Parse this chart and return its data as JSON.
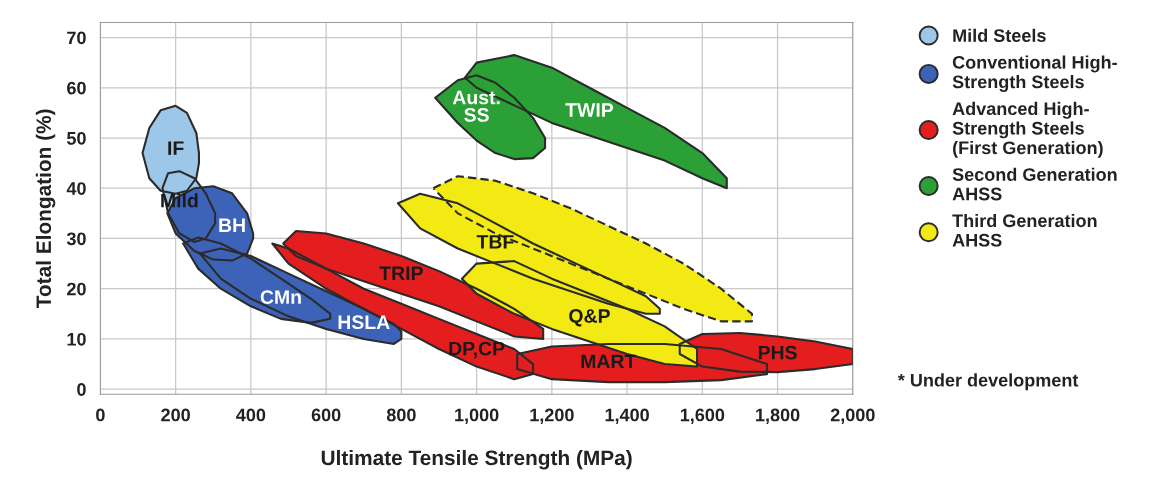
{
  "chart_data": {
    "type": "area",
    "xlabel": "Ultimate Tensile Strength (MPa)",
    "ylabel": "Total Elongation (%)",
    "xlim": [
      0,
      2000
    ],
    "ylim": [
      -1,
      73
    ],
    "xticks": [
      0,
      200,
      400,
      600,
      800,
      {
        "value": 1000,
        "label": "1,000"
      },
      {
        "value": 1200,
        "label": "1,200"
      },
      {
        "value": 1400,
        "label": "1,400"
      },
      {
        "value": 1600,
        "label": "1,600"
      },
      {
        "value": 1800,
        "label": "1,800"
      },
      {
        "value": 2000,
        "label": "2,000"
      }
    ],
    "yticks": [
      0,
      10,
      20,
      30,
      40,
      50,
      60,
      70
    ],
    "grid": true,
    "legend": "right",
    "series": [
      {
        "name": "Mild Steels",
        "color": "#9cc7e8",
        "x": [
          165,
          180,
          210,
          250,
          280,
          305,
          305,
          280,
          250,
          210,
          180,
          165,
          null,
          112,
          130,
          160,
          200,
          230,
          255,
          262,
          262,
          255,
          230,
          200,
          160,
          130,
          112
        ],
        "values": [
          40,
          43,
          43.4,
          42,
          39,
          35,
          33,
          30,
          29.3,
          31,
          35,
          40,
          null,
          47,
          52,
          55.5,
          56.4,
          55,
          51,
          47,
          45,
          42,
          39.5,
          38.9,
          39.5,
          42,
          47
        ]
      },
      {
        "name": "Conventional High-\nStrength Steels",
        "color": "#3d63b8",
        "x": [
          265,
          320,
          400,
          500,
          600,
          700,
          780,
          800,
          800,
          780,
          700,
          600,
          500,
          400,
          320,
          265,
          null,
          220,
          260,
          320,
          400,
          480,
          560,
          611,
          611,
          560,
          480,
          400,
          320,
          260,
          220,
          null,
          178,
          200,
          250,
          300,
          350,
          390,
          406,
          406,
          390,
          350,
          300,
          250,
          200,
          178
        ],
        "values": [
          27,
          28,
          26.5,
          23,
          19.5,
          16,
          13,
          11.5,
          10,
          9,
          10,
          12,
          14.5,
          18,
          22,
          27,
          null,
          29,
          30.2,
          29,
          26,
          22,
          18,
          15,
          14,
          13.2,
          14,
          16.5,
          20,
          24,
          29,
          null,
          35,
          38,
          40,
          40.4,
          39,
          35,
          31,
          30,
          27,
          25.6,
          25.8,
          27.5,
          31,
          35
        ]
      },
      {
        "name": "Advanced High-\nStrength Steels\n(First Generation)",
        "color": "#e41e1e",
        "x": [
          457,
          500,
          600,
          700,
          800,
          900,
          1000,
          1100,
          1150,
          1150,
          1100,
          1000,
          900,
          800,
          700,
          600,
          500,
          457,
          null,
          1108,
          1200,
          1350,
          1500,
          1650,
          1772,
          1772,
          1650,
          1500,
          1350,
          1200,
          1108,
          null,
          1540,
          1600,
          1700,
          1800,
          1900,
          2000,
          2000,
          1900,
          1800,
          1700,
          1600,
          1540,
          null,
          486,
          520,
          600,
          700,
          800,
          900,
          1000,
          1100,
          1177,
          1177,
          1100,
          1000,
          900,
          800,
          700,
          600,
          520,
          486
        ],
        "values": [
          29,
          28,
          24,
          20,
          17,
          14,
          11,
          8,
          5,
          3,
          2,
          4.5,
          8,
          12,
          16,
          20,
          25,
          29,
          null,
          7,
          8.5,
          9,
          9,
          8,
          5,
          3,
          1.8,
          1.4,
          1.4,
          2,
          4,
          null,
          9,
          11,
          11.2,
          10.5,
          9.5,
          8,
          5,
          4,
          3.4,
          3.5,
          4.5,
          7,
          null,
          29,
          31.5,
          31,
          29,
          26.5,
          23.5,
          20,
          16,
          12,
          10,
          10.5,
          13.5,
          16.5,
          19,
          21.5,
          24,
          26.5,
          29
        ]
      },
      {
        "name": "Second Generation\nAHSS",
        "color": "#2aa037",
        "x": [
          969,
          1000,
          1100,
          1200,
          1300,
          1400,
          1500,
          1600,
          1665,
          1665,
          1600,
          1500,
          1400,
          1300,
          1200,
          1100,
          1000,
          969,
          null,
          890,
          950,
          1000,
          1050,
          1100,
          1150,
          1182,
          1182,
          1150,
          1100,
          1050,
          1000,
          950,
          890
        ],
        "values": [
          62,
          65,
          66.5,
          64,
          60,
          56,
          52,
          47,
          42,
          40,
          42,
          45.5,
          48,
          50.5,
          53,
          56.5,
          60,
          62,
          null,
          58,
          61.5,
          62.5,
          61,
          58,
          54,
          50,
          48,
          46,
          45.8,
          47,
          49.5,
          53,
          58
        ]
      },
      {
        "name": "Third Generation\nAHSS",
        "color": "#f2ea12",
        "x": [
          791,
          850,
          950,
          1050,
          1150,
          1250,
          1350,
          1450,
          1487,
          1487,
          1450,
          1350,
          1250,
          1150,
          1050,
          950,
          850,
          791,
          null,
          961,
          1000,
          1100,
          1200,
          1300,
          1400,
          1500,
          1586,
          1586,
          1500,
          1400,
          1300,
          1200,
          1100,
          1000,
          961
        ],
        "values": [
          37,
          38.9,
          37,
          33,
          29,
          25.5,
          22,
          18.5,
          16,
          15,
          15,
          17,
          19.5,
          22,
          25,
          28,
          32,
          37,
          null,
          22,
          25,
          25.5,
          22,
          19,
          16,
          12.5,
          8,
          4.5,
          5,
          7,
          9.5,
          12,
          15,
          19,
          22
        ]
      },
      {
        "color": "#f2ea12",
        "line_style": "dashed",
        "x": [
          885,
          950,
          1050,
          1150,
          1250,
          1350,
          1450,
          1550,
          1650,
          1732,
          1732,
          1650,
          1550,
          1450,
          1350,
          1250,
          1150,
          1050,
          950,
          885
        ],
        "values": [
          40,
          42.4,
          41.5,
          39,
          36,
          32.5,
          29,
          25,
          20,
          15,
          13.5,
          13.5,
          16,
          19,
          22,
          25,
          28,
          31,
          35,
          40
        ]
      }
    ],
    "annotations": [
      {
        "text": "IF",
        "x": 200,
        "y": 56.4
      },
      {
        "text": "Mild",
        "x": 210,
        "y": 43.4
      },
      {
        "text": "BH",
        "x": 350,
        "y": 39
      },
      {
        "text": "CMn",
        "x": 480,
        "y": 22
      },
      {
        "text": "HSLA",
        "x": 700,
        "y": 16
      },
      {
        "text": "TRIP",
        "x": 800,
        "y": 26.5
      },
      {
        "text": "DP,CP",
        "x": 1000,
        "y": 11
      },
      {
        "text": "MART",
        "x": 1350,
        "y": 9
      },
      {
        "text": "PHS",
        "x": 1800,
        "y": 10.5
      },
      {
        "text": "Q&P",
        "x": 1300,
        "y": 19
      },
      {
        "text": "TBF",
        "x": 1050,
        "y": 33
      },
      {
        "text": "Aust.\nSS",
        "x": 1000,
        "y": 62.5
      },
      {
        "text": "TWIP",
        "x": 1300,
        "y": 60
      },
      "* Under development"
    ]
  }
}
